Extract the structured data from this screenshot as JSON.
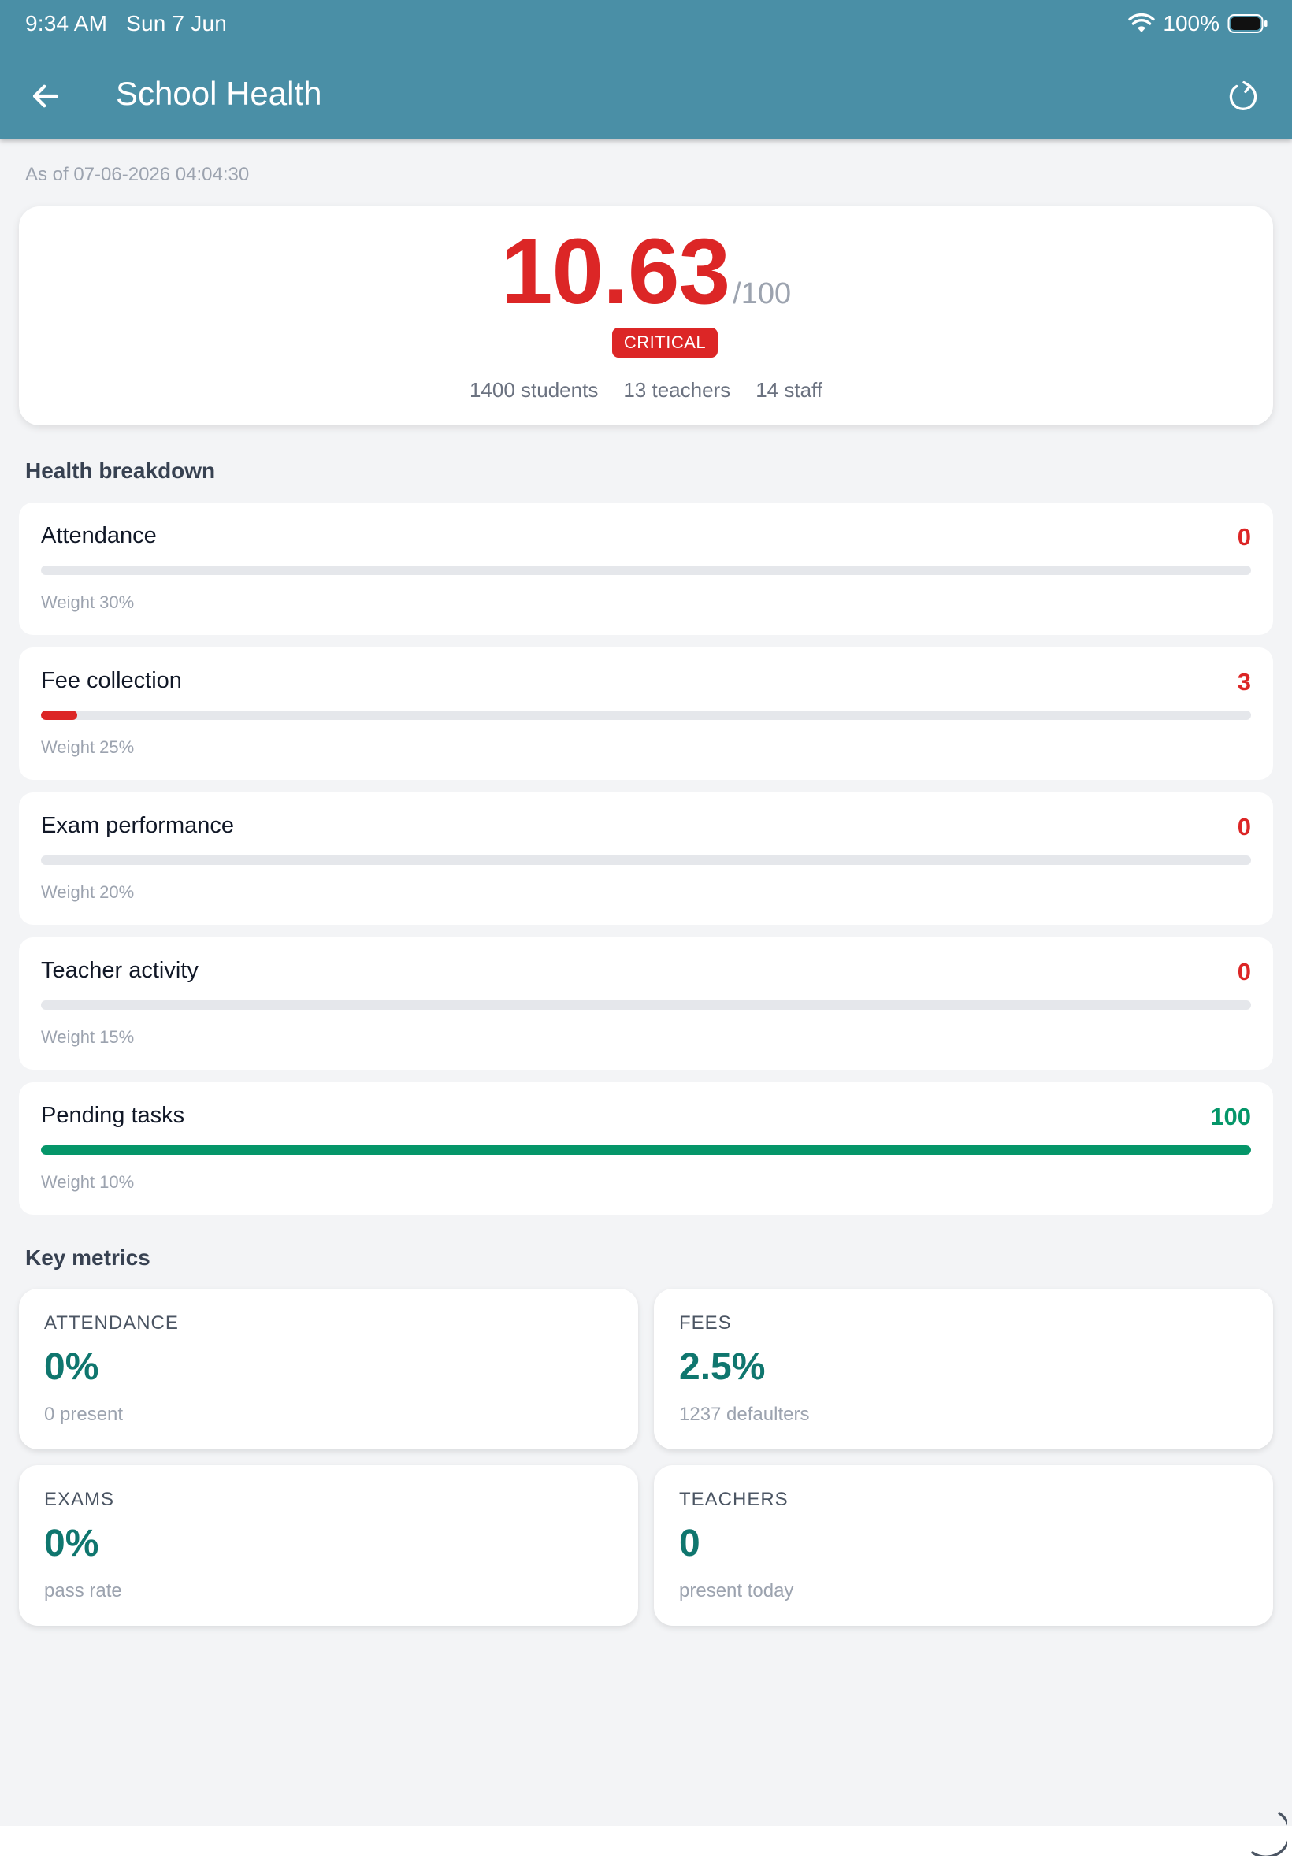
{
  "status_bar": {
    "time": "9:34 AM",
    "date": "Sun 7 Jun",
    "battery": "100%",
    "icons": [
      "wifi-icon",
      "battery-icon"
    ]
  },
  "appbar": {
    "title": "School Health",
    "icons": [
      "arrow-left-icon",
      "refresh-icon"
    ]
  },
  "as_of": "As of 07-06-2026 04:04:30",
  "score": {
    "value": "10.63",
    "max": "/100",
    "status": "CRITICAL",
    "students": "1400 students",
    "teachers": "13 teachers",
    "staff": "14 staff"
  },
  "breakdown": {
    "title": "Health breakdown",
    "items": [
      {
        "label": "Attendance",
        "value": "0",
        "score": 0,
        "weight": "Weight 30%"
      },
      {
        "label": "Fee collection",
        "value": "3",
        "score": 3,
        "weight": "Weight 25%"
      },
      {
        "label": "Exam performance",
        "value": "0",
        "score": 0,
        "weight": "Weight 20%"
      },
      {
        "label": "Teacher activity",
        "value": "0",
        "score": 0,
        "weight": "Weight 15%"
      },
      {
        "label": "Pending tasks",
        "value": "100",
        "score": 100,
        "weight": "Weight 10%"
      }
    ]
  },
  "key_metrics": {
    "title": "Key metrics",
    "items": [
      {
        "label": "ATTENDANCE",
        "value": "0%",
        "sub": "0 present"
      },
      {
        "label": "FEES",
        "value": "2.5%",
        "sub": "1237 defaulters"
      },
      {
        "label": "EXAMS",
        "value": "0%",
        "sub": "pass rate"
      },
      {
        "label": "TEACHERS",
        "value": "0",
        "sub": "present today"
      }
    ]
  },
  "colors": {
    "header": "#4a8fa6",
    "critical": "#dc2626",
    "good": "#059669",
    "metric": "#0f766e"
  }
}
